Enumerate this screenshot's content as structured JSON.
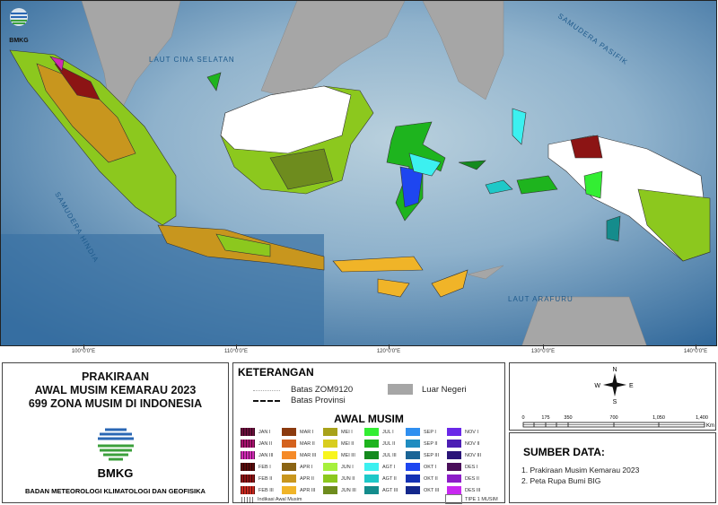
{
  "map": {
    "logo_text": "BMKG",
    "sea_labels": [
      "LAUT CINA SELATAN",
      "SAMUDERA PASIFIK",
      "SAMUDERA HINDIA",
      "LAUT ARAFURU"
    ],
    "longitudes": [
      "100°0'0\"E",
      "110°0'0\"E",
      "120°0'0\"E",
      "130°0'0\"E",
      "140°0'0\"E"
    ],
    "colors": {
      "ocean": "#3f78a8",
      "foreign_land": "#a6a6a6",
      "tipe_1_musim": "#ffffff"
    }
  },
  "title_panel": {
    "lines": [
      "PRAKIRAAN",
      "AWAL MUSIM KEMARAU 2023",
      "699 ZONA MUSIM DI INDONESIA"
    ],
    "logo_text": "BMKG",
    "organization": "BADAN METEOROLOGI KLIMATOLOGI DAN GEOFISIKA"
  },
  "legend": {
    "heading": "KETERANGAN",
    "lines": [
      {
        "label": "Batas ZOM9120"
      },
      {
        "label": "Batas Provinsi"
      }
    ],
    "foreign": {
      "label": "Luar Negeri",
      "color": "#a6a6a6"
    },
    "section": "AWAL MUSIM",
    "items": [
      {
        "label": "JAN I",
        "color": "#6b0f3c",
        "hatched": true
      },
      {
        "label": "MAR I",
        "color": "#8b3a0e"
      },
      {
        "label": "MEI I",
        "color": "#a8a21a"
      },
      {
        "label": "JUL I",
        "color": "#33ee33"
      },
      {
        "label": "SEP I",
        "color": "#2f8ff0"
      },
      {
        "label": "NOV I",
        "color": "#6a28e8"
      },
      {
        "label": "JAN II",
        "color": "#a8126e",
        "hatched": true
      },
      {
        "label": "MAR II",
        "color": "#d4621e"
      },
      {
        "label": "MEI II",
        "color": "#d8cd1e"
      },
      {
        "label": "JUL II",
        "color": "#1eb41e"
      },
      {
        "label": "SEP II",
        "color": "#1f8cc0"
      },
      {
        "label": "NOV II",
        "color": "#4c1eb4"
      },
      {
        "label": "JAN III",
        "color": "#d02ab4",
        "hatched": true
      },
      {
        "label": "MAR III",
        "color": "#f58a28"
      },
      {
        "label": "MEI III",
        "color": "#f8f51e"
      },
      {
        "label": "JUL III",
        "color": "#148a1e"
      },
      {
        "label": "SEP III",
        "color": "#1a6496"
      },
      {
        "label": "NOV III",
        "color": "#2a1478"
      },
      {
        "label": "FEB I",
        "color": "#5a0a0a",
        "hatched": true
      },
      {
        "label": "APR I",
        "color": "#8a6414"
      },
      {
        "label": "JUN I",
        "color": "#a6f03c"
      },
      {
        "label": "AGT I",
        "color": "#3cf0f0"
      },
      {
        "label": "OKT I",
        "color": "#1e46f0"
      },
      {
        "label": "DES I",
        "color": "#4a0f5a"
      },
      {
        "label": "FEB II",
        "color": "#8c1414",
        "hatched": true
      },
      {
        "label": "APR II",
        "color": "#c8961e"
      },
      {
        "label": "JUN II",
        "color": "#8cc81e"
      },
      {
        "label": "AGT II",
        "color": "#1ec8c8"
      },
      {
        "label": "OKT II",
        "color": "#1432b4"
      },
      {
        "label": "DES II",
        "color": "#8c1ec8"
      },
      {
        "label": "FEB III",
        "color": "#c8281e",
        "hatched": true
      },
      {
        "label": "APR III",
        "color": "#f0b428"
      },
      {
        "label": "JUN III",
        "color": "#6e8c1e"
      },
      {
        "label": "AGT III",
        "color": "#148c8c"
      },
      {
        "label": "OKT III",
        "color": "#14288c"
      },
      {
        "label": "DES III",
        "color": "#c828f0"
      }
    ],
    "indication": "Indikasi Awal Musim",
    "tipe1": "TIPE 1 MUSIM"
  },
  "scale": {
    "compass": {
      "n": "N",
      "e": "E",
      "s": "S",
      "w": "W"
    },
    "ticks": [
      "0",
      "175",
      "350",
      "700",
      "1,050",
      "1,400"
    ],
    "unit": "Km"
  },
  "source": {
    "heading": "SUMBER DATA:",
    "items": [
      "1. Prakiraan Musim Kemarau 2023",
      "2. Peta Rupa Bumi BIG"
    ]
  }
}
